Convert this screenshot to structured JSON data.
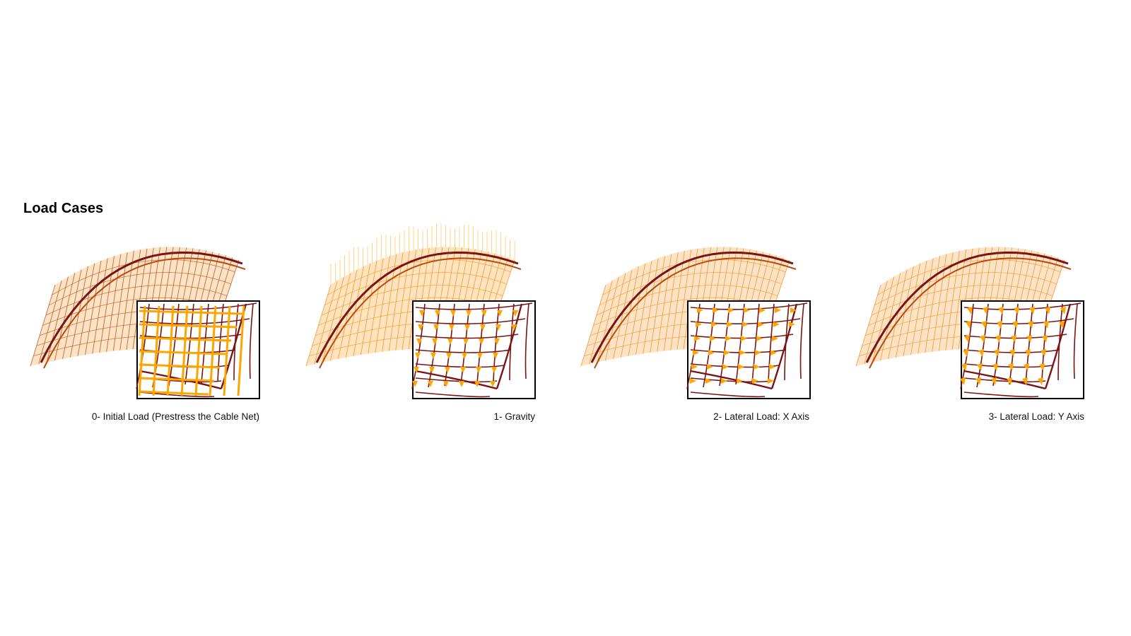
{
  "title": "Load Cases",
  "colors": {
    "shell_light": "#ffb347",
    "shell_mid": "#f5901a",
    "shell_dark": "#b84a10",
    "beam": "#7a1414",
    "arrow": "#ffa500"
  },
  "panels": [
    {
      "caption": "0- Initial Load (Prestress the Cable Net)",
      "inset": "prestress",
      "tint": "dark"
    },
    {
      "caption": "1- Gravity",
      "inset": "gravity",
      "tint": "light"
    },
    {
      "caption": "2- Lateral Load: X Axis",
      "inset": "lateral-x",
      "tint": "mid"
    },
    {
      "caption": "3- Lateral Load: Y Axis",
      "inset": "lateral-y",
      "tint": "mid"
    }
  ]
}
